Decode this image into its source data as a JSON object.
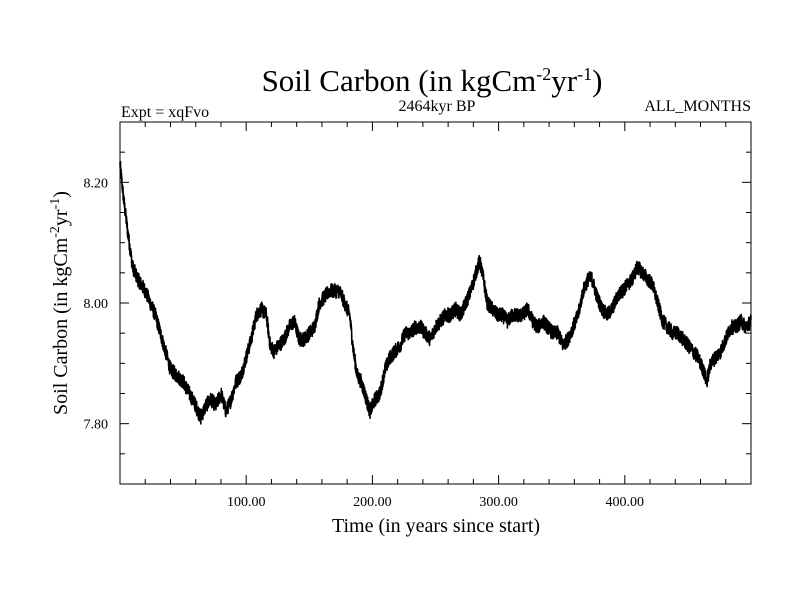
{
  "chart_data": {
    "type": "line",
    "title": {
      "main": "Soil Carbon (in kgCm",
      "sup1": "-2",
      "mid": "yr",
      "sup2": "-1",
      "end": ")"
    },
    "subtitle_left": "Expt = xqFvo",
    "subtitle_center": "2464kyr BP",
    "subtitle_right": "ALL_MONTHS",
    "xlabel": "Time (in years since start)",
    "ylabel": {
      "main": "Soil Carbon (in kgCm",
      "sup1": "-2",
      "mid": "yr",
      "sup2": "-1",
      "end": ")"
    },
    "xlim": [
      0,
      500
    ],
    "ylim": [
      7.7,
      8.3
    ],
    "x_major_ticks": [
      100,
      200,
      300,
      400
    ],
    "x_tick_labels": [
      "100.00",
      "200.00",
      "300.00",
      "400.00"
    ],
    "x_minor_step": 20,
    "y_major_ticks": [
      7.8,
      8.0,
      8.2
    ],
    "y_tick_labels": [
      "7.80",
      "8.00",
      "8.20"
    ],
    "y_minor_step": 0.05,
    "series": [
      {
        "name": "Soil Carbon",
        "color": "#000000",
        "points": [
          [
            0,
            8.23
          ],
          [
            3,
            8.17
          ],
          [
            6,
            8.12
          ],
          [
            10,
            8.06
          ],
          [
            14,
            8.04
          ],
          [
            17,
            8.03
          ],
          [
            20,
            8.02
          ],
          [
            24,
            8.0
          ],
          [
            28,
            7.98
          ],
          [
            32,
            7.95
          ],
          [
            36,
            7.92
          ],
          [
            40,
            7.89
          ],
          [
            45,
            7.88
          ],
          [
            50,
            7.87
          ],
          [
            55,
            7.85
          ],
          [
            60,
            7.83
          ],
          [
            64,
            7.81
          ],
          [
            68,
            7.83
          ],
          [
            72,
            7.84
          ],
          [
            76,
            7.83
          ],
          [
            80,
            7.85
          ],
          [
            84,
            7.82
          ],
          [
            88,
            7.84
          ],
          [
            92,
            7.87
          ],
          [
            96,
            7.88
          ],
          [
            100,
            7.91
          ],
          [
            104,
            7.94
          ],
          [
            108,
            7.98
          ],
          [
            112,
            7.99
          ],
          [
            116,
            7.98
          ],
          [
            119,
            7.93
          ],
          [
            122,
            7.92
          ],
          [
            126,
            7.93
          ],
          [
            130,
            7.94
          ],
          [
            134,
            7.96
          ],
          [
            138,
            7.97
          ],
          [
            142,
            7.94
          ],
          [
            146,
            7.94
          ],
          [
            150,
            7.95
          ],
          [
            154,
            7.96
          ],
          [
            158,
            8.0
          ],
          [
            162,
            8.01
          ],
          [
            166,
            8.02
          ],
          [
            170,
            8.02
          ],
          [
            174,
            8.02
          ],
          [
            178,
            8.0
          ],
          [
            182,
            7.98
          ],
          [
            185,
            7.92
          ],
          [
            188,
            7.88
          ],
          [
            191,
            7.87
          ],
          [
            194,
            7.85
          ],
          [
            198,
            7.82
          ],
          [
            202,
            7.84
          ],
          [
            206,
            7.85
          ],
          [
            210,
            7.89
          ],
          [
            214,
            7.91
          ],
          [
            218,
            7.92
          ],
          [
            222,
            7.93
          ],
          [
            226,
            7.95
          ],
          [
            230,
            7.95
          ],
          [
            234,
            7.96
          ],
          [
            238,
            7.96
          ],
          [
            242,
            7.95
          ],
          [
            246,
            7.94
          ],
          [
            250,
            7.96
          ],
          [
            254,
            7.97
          ],
          [
            258,
            7.98
          ],
          [
            262,
            7.98
          ],
          [
            266,
            7.99
          ],
          [
            270,
            7.98
          ],
          [
            274,
            8.0
          ],
          [
            278,
            8.02
          ],
          [
            282,
            8.05
          ],
          [
            285,
            8.07
          ],
          [
            288,
            8.04
          ],
          [
            291,
            8.0
          ],
          [
            295,
            7.99
          ],
          [
            299,
            7.98
          ],
          [
            303,
            7.98
          ],
          [
            307,
            7.97
          ],
          [
            311,
            7.98
          ],
          [
            315,
            7.98
          ],
          [
            319,
            7.98
          ],
          [
            323,
            7.99
          ],
          [
            327,
            7.97
          ],
          [
            331,
            7.96
          ],
          [
            335,
            7.97
          ],
          [
            339,
            7.96
          ],
          [
            343,
            7.95
          ],
          [
            347,
            7.95
          ],
          [
            351,
            7.93
          ],
          [
            355,
            7.94
          ],
          [
            359,
            7.96
          ],
          [
            363,
            7.98
          ],
          [
            367,
            8.02
          ],
          [
            371,
            8.04
          ],
          [
            374,
            8.04
          ],
          [
            378,
            8.01
          ],
          [
            382,
            7.99
          ],
          [
            386,
            7.98
          ],
          [
            390,
            7.99
          ],
          [
            394,
            8.01
          ],
          [
            398,
            8.02
          ],
          [
            402,
            8.03
          ],
          [
            406,
            8.04
          ],
          [
            410,
            8.06
          ],
          [
            414,
            8.05
          ],
          [
            418,
            8.04
          ],
          [
            422,
            8.03
          ],
          [
            426,
            8.0
          ],
          [
            430,
            7.97
          ],
          [
            434,
            7.96
          ],
          [
            438,
            7.95
          ],
          [
            442,
            7.95
          ],
          [
            446,
            7.94
          ],
          [
            450,
            7.93
          ],
          [
            454,
            7.92
          ],
          [
            458,
            7.91
          ],
          [
            462,
            7.89
          ],
          [
            465,
            7.87
          ],
          [
            468,
            7.9
          ],
          [
            472,
            7.91
          ],
          [
            476,
            7.92
          ],
          [
            480,
            7.94
          ],
          [
            484,
            7.96
          ],
          [
            488,
            7.96
          ],
          [
            492,
            7.97
          ],
          [
            496,
            7.96
          ],
          [
            500,
            7.97
          ]
        ]
      }
    ]
  }
}
